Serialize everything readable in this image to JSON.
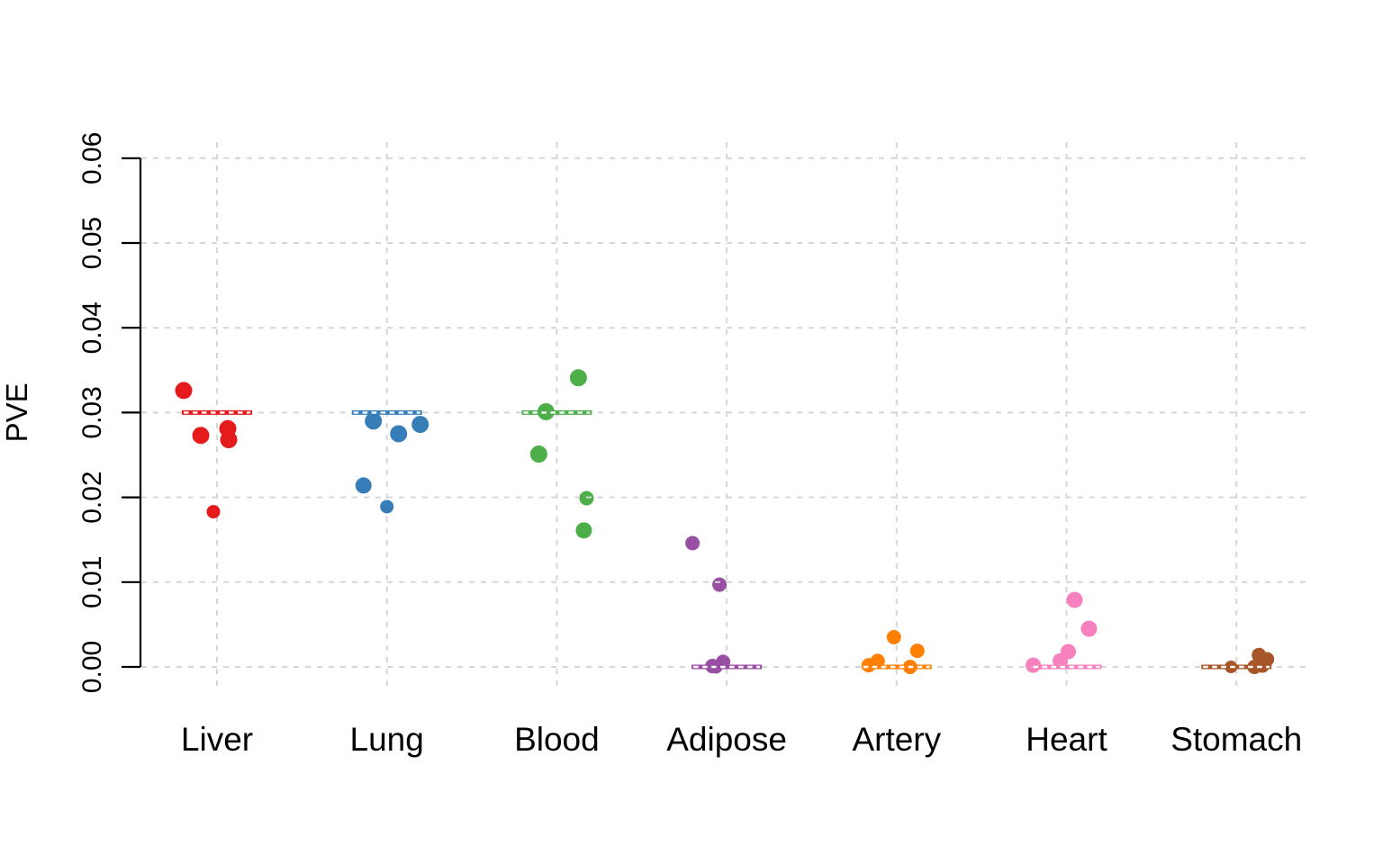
{
  "chart_data": {
    "type": "scatter",
    "variant": "stripchart",
    "title": "",
    "xlabel": "",
    "ylabel": "PVE",
    "ylim": [
      0,
      0.06
    ],
    "ytick_labels": [
      "0.00",
      "0.01",
      "0.02",
      "0.03",
      "0.04",
      "0.05",
      "0.06"
    ],
    "ytick_values": [
      0,
      0.01,
      0.02,
      0.03,
      0.04,
      0.05,
      0.06
    ],
    "grid": true,
    "legend": "none",
    "categories": [
      "Liver",
      "Lung",
      "Blood",
      "Adipose",
      "Artery",
      "Heart",
      "Stomach"
    ],
    "colors": {
      "grid": "#d6d6d6",
      "axis": "#000000",
      "background": "#ffffff",
      "true_line_dash": "#ffffff"
    },
    "series": [
      {
        "name": "Liver",
        "color": "#e41a1c",
        "true_value": 0.03,
        "points": [
          {
            "dx": -37,
            "v": 0.0326,
            "r": 9.5
          },
          {
            "dx": -18,
            "v": 0.0273,
            "r": 9.5
          },
          {
            "dx": 12,
            "v": 0.0281,
            "r": 9.5
          },
          {
            "dx": 13,
            "v": 0.0268,
            "r": 9.5
          },
          {
            "dx": -4,
            "v": 0.0183,
            "r": 7.5
          }
        ]
      },
      {
        "name": "Lung",
        "color": "#377eb8",
        "true_value": 0.03,
        "points": [
          {
            "dx": -15,
            "v": 0.029,
            "r": 9.5
          },
          {
            "dx": 13,
            "v": 0.0275,
            "r": 9.5
          },
          {
            "dx": 37,
            "v": 0.0286,
            "r": 9.5
          },
          {
            "dx": -26,
            "v": 0.0214,
            "r": 9
          },
          {
            "dx": 0,
            "v": 0.0189,
            "r": 7.5
          }
        ]
      },
      {
        "name": "Blood",
        "color": "#4daf4a",
        "true_value": 0.03,
        "points": [
          {
            "dx": 24,
            "v": 0.0341,
            "r": 9.5
          },
          {
            "dx": -12,
            "v": 0.0301,
            "r": 9.5
          },
          {
            "dx": -20,
            "v": 0.0251,
            "r": 9.5
          },
          {
            "dx": 33,
            "v": 0.0199,
            "r": 8
          },
          {
            "dx": 30,
            "v": 0.0161,
            "r": 9
          }
        ]
      },
      {
        "name": "Adipose",
        "color": "#984ea3",
        "true_value": 0,
        "points": [
          {
            "dx": -38,
            "v": 0.0146,
            "r": 8
          },
          {
            "dx": -8,
            "v": 0.0097,
            "r": 8
          },
          {
            "dx": -16,
            "v": 0.0001,
            "r": 8
          },
          {
            "dx": -4,
            "v": 0.0006,
            "r": 8
          },
          {
            "dx": -12,
            "v": 0.0,
            "r": 7.5
          }
        ]
      },
      {
        "name": "Artery",
        "color": "#ff7f00",
        "true_value": 0,
        "points": [
          {
            "dx": -3,
            "v": 0.0035,
            "r": 8
          },
          {
            "dx": 23,
            "v": 0.0019,
            "r": 8
          },
          {
            "dx": -21,
            "v": 0.0007,
            "r": 8
          },
          {
            "dx": -31,
            "v": 0.0002,
            "r": 8
          },
          {
            "dx": 15,
            "v": 0.0,
            "r": 8
          }
        ]
      },
      {
        "name": "Heart",
        "color": "#f781bf",
        "true_value": 0,
        "points": [
          {
            "dx": 9,
            "v": 0.0079,
            "r": 9
          },
          {
            "dx": 25,
            "v": 0.0045,
            "r": 9
          },
          {
            "dx": 2,
            "v": 0.0018,
            "r": 8.5
          },
          {
            "dx": -7,
            "v": 0.0007,
            "r": 8.5
          },
          {
            "dx": -37,
            "v": 0.0002,
            "r": 8.5
          }
        ]
      },
      {
        "name": "Stomach",
        "color": "#a65628",
        "true_value": 0,
        "points": [
          {
            "dx": 25,
            "v": 0.0014,
            "r": 8
          },
          {
            "dx": 34,
            "v": 0.0009,
            "r": 8
          },
          {
            "dx": -6,
            "v": 0.0,
            "r": 7
          },
          {
            "dx": 20,
            "v": 0.0,
            "r": 8
          },
          {
            "dx": 29,
            "v": 0.0001,
            "r": 7.5
          }
        ]
      }
    ]
  }
}
